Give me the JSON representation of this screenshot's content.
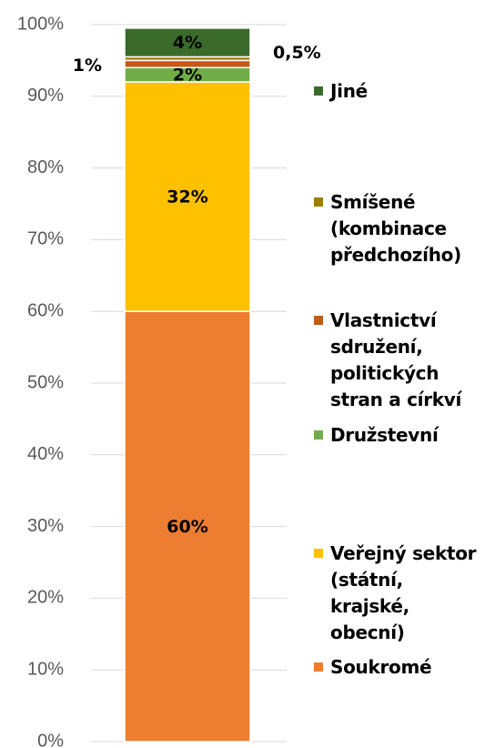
{
  "chart_data": {
    "type": "stacked_bar",
    "categories": [
      null
    ],
    "series": [
      {
        "name": "Soukromé",
        "color": "#ed7d31",
        "values": [
          60
        ],
        "value_labels": [
          "60%"
        ]
      },
      {
        "name": "Veřejný sektor (státní, krajské, obecní)",
        "color": "#ffc000",
        "values": [
          32
        ],
        "value_labels": [
          "32%"
        ]
      },
      {
        "name": "Družstevní",
        "color": "#70ad47",
        "values": [
          2
        ],
        "value_labels": [
          "2%"
        ]
      },
      {
        "name": "Vlastnictví sdružení, politických stran a církví",
        "color": "#c55a11",
        "values": [
          1
        ],
        "value_labels": [
          "1%"
        ]
      },
      {
        "name": "Smíšené (kombinace předchozího)",
        "color": "#9c7f00",
        "values": [
          0.5
        ],
        "value_labels": [
          "0,5%"
        ]
      },
      {
        "name": "Jiné",
        "color": "#3b6b2b",
        "values": [
          4
        ],
        "value_labels": [
          "4%"
        ]
      }
    ],
    "ylim": [
      0,
      100
    ],
    "yticks": [
      {
        "value": 0,
        "label": "0%"
      },
      {
        "value": 10,
        "label": "10%"
      },
      {
        "value": 20,
        "label": "20%"
      },
      {
        "value": 30,
        "label": "30%"
      },
      {
        "value": 40,
        "label": "40%"
      },
      {
        "value": 50,
        "label": "50%"
      },
      {
        "value": 60,
        "label": "60%"
      },
      {
        "value": 70,
        "label": "70%"
      },
      {
        "value": 80,
        "label": "80%"
      },
      {
        "value": 90,
        "label": "90%"
      },
      {
        "value": 100,
        "label": "100%"
      }
    ],
    "grid": true,
    "legend": "right"
  }
}
